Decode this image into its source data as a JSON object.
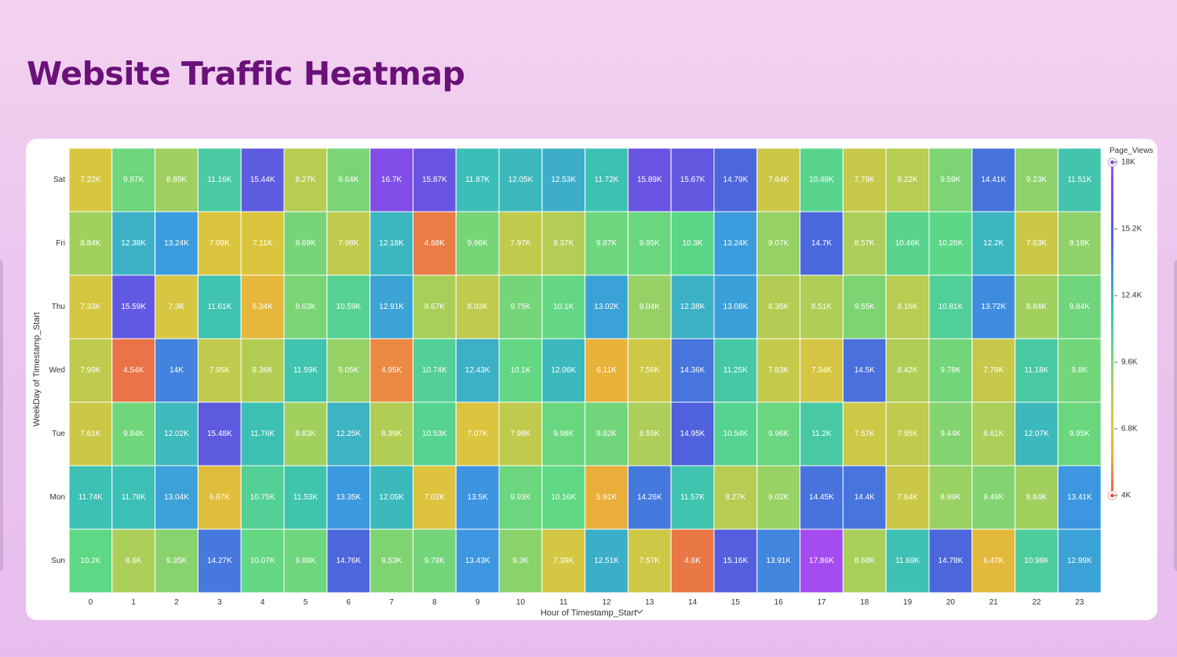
{
  "page": {
    "title": "Website Traffic Heatmap"
  },
  "chart_data": {
    "type": "heatmap",
    "xlabel": "Hour of Timestamp_Start",
    "ylabel": "WeekDay of Timestamp_Start",
    "x": [
      "0",
      "1",
      "2",
      "3",
      "4",
      "5",
      "6",
      "7",
      "8",
      "9",
      "10",
      "11",
      "12",
      "13",
      "14",
      "15",
      "16",
      "17",
      "18",
      "19",
      "20",
      "21",
      "22",
      "23"
    ],
    "y": [
      "Sat",
      "Fri",
      "Thu",
      "Wed",
      "Tue",
      "Mon",
      "Sun"
    ],
    "values": [
      [
        7220,
        9870,
        8850,
        11160,
        15440,
        8270,
        9640,
        16700,
        15870,
        11870,
        12050,
        12530,
        11720,
        15890,
        15670,
        14790,
        7640,
        10480,
        7790,
        8220,
        9590,
        14410,
        9230,
        11510
      ],
      [
        8840,
        12380,
        13240,
        7090,
        7110,
        9690,
        7980,
        12180,
        4680,
        9660,
        7970,
        8370,
        9870,
        9950,
        10300,
        13240,
        9070,
        14700,
        8570,
        10460,
        10260,
        12200,
        7630,
        9180
      ],
      [
        7330,
        15590,
        7300,
        11610,
        6340,
        9630,
        10590,
        12910,
        8670,
        8030,
        9750,
        10100,
        13020,
        9040,
        12380,
        13080,
        8350,
        8510,
        9550,
        8160,
        10810,
        13720,
        8840,
        9840
      ],
      [
        7990,
        4540,
        14000,
        7950,
        8360,
        11590,
        9050,
        4950,
        10740,
        12430,
        10100,
        12060,
        6110,
        7560,
        14360,
        11250,
        7830,
        7340,
        14500,
        8420,
        9780,
        7790,
        11180,
        9800
      ],
      [
        7610,
        9840,
        12020,
        15480,
        11760,
        8830,
        12250,
        8390,
        10530,
        7070,
        7980,
        9980,
        9820,
        8550,
        14950,
        10540,
        9960,
        11200,
        7570,
        7950,
        9440,
        8610,
        12070,
        9950
      ],
      [
        11740,
        11780,
        13040,
        6670,
        10750,
        11530,
        13350,
        12050,
        7020,
        13500,
        9930,
        10160,
        5910,
        14260,
        11570,
        8270,
        9020,
        14450,
        14400,
        7640,
        8990,
        9490,
        8840,
        13410
      ],
      [
        10200,
        8600,
        9350,
        14270,
        10070,
        9880,
        14760,
        9530,
        9780,
        13430,
        9300,
        7390,
        12510,
        7570,
        4600,
        15160,
        13910,
        17860,
        8680,
        11690,
        14780,
        6470,
        10980,
        12990
      ]
    ],
    "labels": [
      [
        "7.22K",
        "9.87K",
        "8.85K",
        "11.16K",
        "15.44K",
        "8.27K",
        "9.64K",
        "16.7K",
        "15.87K",
        "11.87K",
        "12.05K",
        "12.53K",
        "11.72K",
        "15.89K",
        "15.67K",
        "14.79K",
        "7.64K",
        "10.48K",
        "7.79K",
        "8.22K",
        "9.59K",
        "14.41K",
        "9.23K",
        "11.51K"
      ],
      [
        "8.84K",
        "12.38K",
        "13.24K",
        "7.09K",
        "7.11K",
        "9.69K",
        "7.98K",
        "12.18K",
        "4.68K",
        "9.66K",
        "7.97K",
        "8.37K",
        "9.87K",
        "9.95K",
        "10.3K",
        "13.24K",
        "9.07K",
        "14.7K",
        "8.57K",
        "10.46K",
        "10.26K",
        "12.2K",
        "7.63K",
        "9.18K"
      ],
      [
        "7.33K",
        "15.59K",
        "7.3K",
        "11.61K",
        "6.34K",
        "9.63K",
        "10.59K",
        "12.91K",
        "8.67K",
        "8.03K",
        "9.75K",
        "10.1K",
        "13.02K",
        "9.04K",
        "12.38K",
        "13.08K",
        "8.35K",
        "8.51K",
        "9.55K",
        "8.16K",
        "10.81K",
        "13.72K",
        "8.84K",
        "9.84K"
      ],
      [
        "7.99K",
        "4.54K",
        "14K",
        "7.95K",
        "8.36K",
        "11.59K",
        "9.05K",
        "4.95K",
        "10.74K",
        "12.43K",
        "10.1K",
        "12.06K",
        "6.11K",
        "7.56K",
        "14.36K",
        "11.25K",
        "7.83K",
        "7.34K",
        "14.5K",
        "8.42K",
        "9.78K",
        "7.79K",
        "11.18K",
        "9.8K"
      ],
      [
        "7.61K",
        "9.84K",
        "12.02K",
        "15.48K",
        "11.76K",
        "8.83K",
        "12.25K",
        "8.39K",
        "10.53K",
        "7.07K",
        "7.98K",
        "9.98K",
        "9.82K",
        "8.55K",
        "14.95K",
        "10.54K",
        "9.96K",
        "11.2K",
        "7.57K",
        "7.95K",
        "9.44K",
        "8.61K",
        "12.07K",
        "9.95K"
      ],
      [
        "11.74K",
        "11.78K",
        "13.04K",
        "6.67K",
        "10.75K",
        "11.53K",
        "13.35K",
        "12.05K",
        "7.02K",
        "13.5K",
        "9.93K",
        "10.16K",
        "5.91K",
        "14.26K",
        "11.57K",
        "8.27K",
        "9.02K",
        "14.45K",
        "14.4K",
        "7.64K",
        "8.99K",
        "9.49K",
        "8.84K",
        "13.41K"
      ],
      [
        "10.2K",
        "8.6K",
        "9.35K",
        "14.27K",
        "10.07K",
        "9.88K",
        "14.76K",
        "9.53K",
        "9.78K",
        "13.43K",
        "9.3K",
        "7.39K",
        "12.51K",
        "7.57K",
        "4.6K",
        "15.16K",
        "13.91K",
        "17.86K",
        "8.68K",
        "11.69K",
        "14.78K",
        "6.47K",
        "10.98K",
        "12.99K"
      ]
    ],
    "color_scale": {
      "title": "Page_Views",
      "min": 4000,
      "max": 18000,
      "ticks": [
        {
          "value": 18000,
          "label": "18K"
        },
        {
          "value": 15200,
          "label": "15.2K"
        },
        {
          "value": 12400,
          "label": "12.4K"
        },
        {
          "value": 9600,
          "label": "9.6K"
        },
        {
          "value": 6800,
          "label": "6.8K"
        },
        {
          "value": 4000,
          "label": "4K"
        }
      ],
      "colors": [
        "#e8594e",
        "#eea83a",
        "#dcc53e",
        "#a9cf5a",
        "#5dd886",
        "#3cc0b5",
        "#3b9ae0",
        "#4d62dc",
        "#7a4ee6",
        "#a84cf0"
      ]
    },
    "legend_position": "right"
  }
}
